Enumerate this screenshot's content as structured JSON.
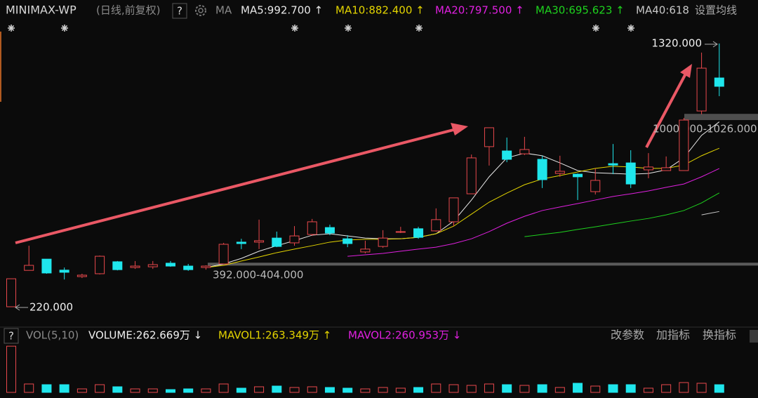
{
  "header": {
    "symbol": "MINIMAX-WP",
    "period": "(日线,前复权)",
    "help": "?",
    "ma_button": "MA",
    "settings": "设置均线"
  },
  "chart_data": {
    "type": "candlestick",
    "ylim": [
      146.7,
      1413.7
    ],
    "up_color": "#e8484c",
    "down_color": "#1fe6ec",
    "open": [
      220,
      372,
      419,
      373,
      346,
      358,
      408,
      384,
      387,
      402,
      390,
      384,
      399,
      490,
      490,
      507,
      487,
      522,
      551,
      504,
      449,
      472,
      531,
      546,
      537,
      575,
      692,
      889,
      871,
      859,
      836,
      777,
      774,
      701,
      818,
      821,
      792,
      789,
      789,
      1038,
      1176
    ],
    "close": [
      337,
      393,
      361,
      364,
      352,
      431,
      375,
      390,
      396,
      390,
      375,
      390,
      481,
      484,
      496,
      472,
      516,
      575,
      528,
      484,
      461,
      507,
      534,
      510,
      584,
      675,
      842,
      968,
      836,
      877,
      751,
      786,
      763,
      748,
      812,
      733,
      804,
      801,
      1000,
      1217,
      1141
    ],
    "high": [
      337,
      475,
      419,
      384,
      358,
      434,
      411,
      411,
      411,
      411,
      399,
      393,
      487,
      504,
      584,
      534,
      557,
      587,
      563,
      519,
      496,
      540,
      554,
      554,
      631,
      675,
      856,
      968,
      927,
      930,
      851,
      851,
      777,
      798,
      900,
      874,
      862,
      848,
      1009,
      1282,
      1320
    ],
    "low": [
      220,
      372,
      358,
      334,
      340,
      355,
      372,
      378,
      378,
      387,
      370,
      375,
      399,
      461,
      461,
      469,
      475,
      516,
      519,
      469,
      443,
      466,
      528,
      504,
      534,
      557,
      692,
      810,
      824,
      854,
      716,
      763,
      666,
      689,
      774,
      716,
      757,
      789,
      789,
      1024,
      1100
    ],
    "ma_lines": [
      {
        "label": "MA5:992.700 ↑",
        "color": "#e8e8e8",
        "values": [
          null,
          null,
          null,
          null,
          null,
          null,
          null,
          null,
          null,
          null,
          null,
          384,
          399,
          422,
          452,
          475,
          496,
          519,
          525,
          516,
          507,
          504,
          504,
          510,
          525,
          578,
          666,
          763,
          842,
          862,
          851,
          821,
          789,
          780,
          777,
          774,
          777,
          792,
          842,
          936,
          992.7
        ]
      },
      {
        "label": "MA10:882.400 ↑",
        "color": "#e3d400",
        "values": [
          null,
          null,
          null,
          null,
          null,
          null,
          null,
          null,
          null,
          null,
          null,
          384,
          393,
          411,
          428,
          446,
          461,
          475,
          490,
          499,
          502,
          502,
          504,
          510,
          525,
          557,
          607,
          657,
          695,
          730,
          754,
          768,
          783,
          798,
          807,
          804,
          798,
          798,
          812,
          851,
          882.4
        ]
      },
      {
        "label": "MA20:797.500 ↑",
        "color": "#e020e0",
        "values": [
          null,
          null,
          null,
          null,
          null,
          null,
          null,
          null,
          null,
          null,
          null,
          null,
          null,
          null,
          null,
          null,
          null,
          null,
          null,
          431,
          437,
          443,
          452,
          461,
          469,
          484,
          504,
          534,
          569,
          598,
          622,
          637,
          651,
          666,
          681,
          692,
          704,
          719,
          733,
          763,
          797.5
        ]
      },
      {
        "label": "MA30:695.623 ↑",
        "color": "#1ed21e",
        "values": [
          null,
          null,
          null,
          null,
          null,
          null,
          null,
          null,
          null,
          null,
          null,
          null,
          null,
          null,
          null,
          null,
          null,
          null,
          null,
          null,
          null,
          null,
          null,
          null,
          null,
          null,
          null,
          null,
          null,
          513,
          522,
          531,
          543,
          554,
          566,
          578,
          589,
          604,
          622,
          654,
          695.623
        ]
      },
      {
        "label": "MA40:618",
        "color": "#c8c8c8",
        "values": [
          null,
          null,
          null,
          null,
          null,
          null,
          null,
          null,
          null,
          null,
          null,
          null,
          null,
          null,
          null,
          null,
          null,
          null,
          null,
          null,
          null,
          null,
          null,
          null,
          null,
          null,
          null,
          null,
          null,
          null,
          null,
          null,
          null,
          null,
          null,
          null,
          null,
          null,
          null,
          604,
          618
        ]
      }
    ],
    "zones": [
      {
        "low": 392,
        "high": 404,
        "label": "392.000-404.000",
        "color": "#6a6a6a"
      },
      {
        "low": 1000,
        "high": 1026,
        "label": "1000.000-1026.000",
        "color": "#5a5a5a"
      }
    ],
    "annotations": [
      "1320.000",
      "220.000"
    ],
    "volume": {
      "help": "?",
      "title": "VOL(5,10)",
      "ylim": [
        0,
        1656
      ],
      "values": [
        1580,
        288,
        264,
        264,
        120,
        264,
        192,
        120,
        120,
        96,
        120,
        120,
        288,
        144,
        192,
        216,
        168,
        192,
        168,
        144,
        120,
        168,
        144,
        168,
        288,
        264,
        240,
        288,
        264,
        240,
        264,
        168,
        312,
        216,
        264,
        264,
        144,
        264,
        336,
        312,
        262.669
      ],
      "labels": [
        {
          "text": "VOLUME:262.669万 ↓",
          "color": "#f0f0f0"
        },
        {
          "text": "MAVOL1:263.349万 ↑",
          "color": "#e3d400"
        },
        {
          "text": "MAVOL2:260.953万 ↓",
          "color": "#e020e0"
        }
      ]
    }
  },
  "toolbar": [
    "改参数",
    "加指标",
    "换指标"
  ]
}
